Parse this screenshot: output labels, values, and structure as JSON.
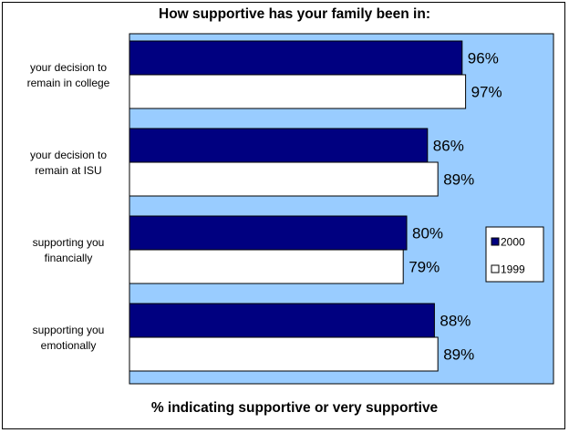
{
  "chart_data": {
    "type": "bar",
    "orientation": "horizontal",
    "title": "How supportive has your family been in:",
    "xlabel": "% indicating supportive or very supportive",
    "ylabel": "",
    "xlim": [
      0,
      100
    ],
    "grid": false,
    "legend_position": "right",
    "categories": [
      [
        "your decision to",
        "remain in college"
      ],
      [
        "your decision to",
        "remain at ISU"
      ],
      [
        "supporting you",
        "financially"
      ],
      [
        "supporting you",
        "emotionally"
      ]
    ],
    "series": [
      {
        "name": "2000",
        "color": "#000080",
        "values": [
          96,
          86,
          80,
          88
        ],
        "labels": [
          "96%",
          "86%",
          "80%",
          "88%"
        ]
      },
      {
        "name": "1999",
        "color": "#ffffff",
        "values": [
          97,
          89,
          79,
          89
        ],
        "labels": [
          "97%",
          "89%",
          "79%",
          "89%"
        ]
      }
    ],
    "plot_background": "#99ccff"
  }
}
